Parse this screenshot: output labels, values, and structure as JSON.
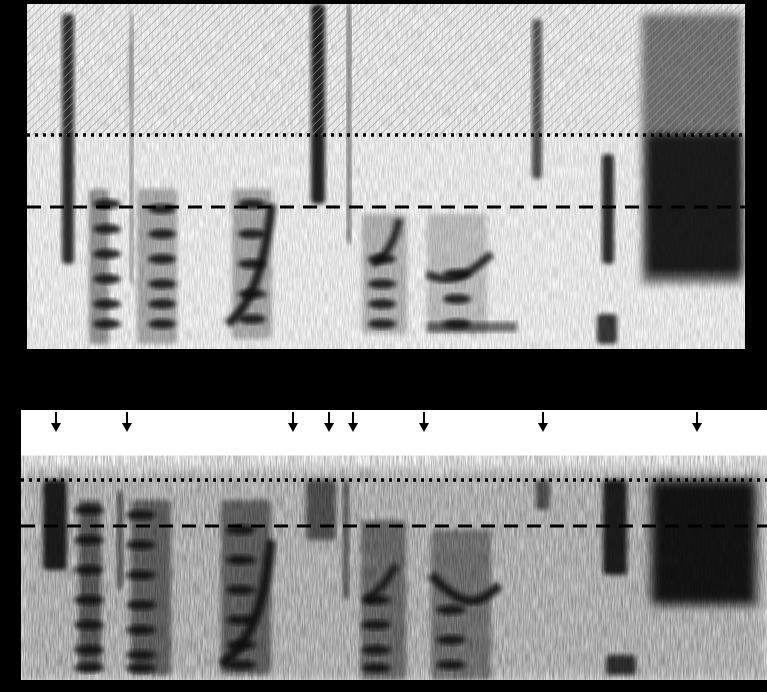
{
  "figure": {
    "background_color": "#000000",
    "panel_background": "#ffffff",
    "ink_color": "#111111"
  },
  "top_panel": {
    "hatched_region": "above-dotted-line",
    "reference_lines": [
      {
        "style": "dotted",
        "label": ""
      },
      {
        "style": "dashed",
        "label": ""
      }
    ]
  },
  "bottom_panel": {
    "arrow_markers": {
      "count": 8,
      "direction": "down",
      "icon": "down-arrow-icon"
    },
    "reference_lines": [
      {
        "style": "dotted",
        "label": ""
      },
      {
        "style": "dashed",
        "label": ""
      }
    ]
  }
}
